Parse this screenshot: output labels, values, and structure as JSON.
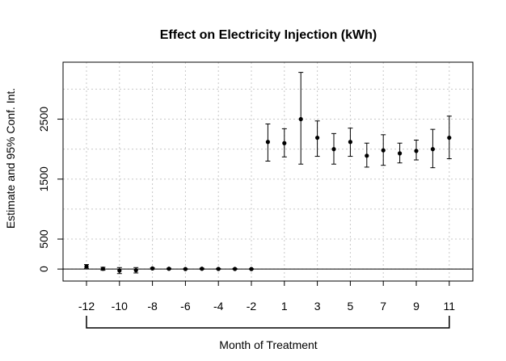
{
  "chart_data": {
    "type": "scatter",
    "title": "Effect on Electricity Injection (kWh)",
    "xlabel": "Month of Treatment",
    "ylabel": "Estimate and 95% Conf. Int.",
    "x_tick_labels": [
      "-12",
      "-10",
      "-8",
      "-6",
      "-4",
      "-2",
      "1",
      "3",
      "5",
      "7",
      "9",
      "11"
    ],
    "y_ticks": [
      0,
      500,
      1500,
      2500
    ],
    "ylim": [
      -200,
      3450
    ],
    "grid": true,
    "reference_line": 0,
    "series": [
      {
        "points": [
          {
            "x": "-12",
            "estimate": 45,
            "lower": 15,
            "upper": 75
          },
          {
            "x": "-11",
            "estimate": 5,
            "lower": -20,
            "upper": 30
          },
          {
            "x": "-10",
            "estimate": -25,
            "lower": -75,
            "upper": 25
          },
          {
            "x": "-9",
            "estimate": -20,
            "lower": -65,
            "upper": 25
          },
          {
            "x": "-8",
            "estimate": 10,
            "lower": 0,
            "upper": 20
          },
          {
            "x": "-7",
            "estimate": 5,
            "lower": -5,
            "upper": 15
          },
          {
            "x": "-6",
            "estimate": 0,
            "lower": -5,
            "upper": 5
          },
          {
            "x": "-5",
            "estimate": 5,
            "lower": -5,
            "upper": 15
          },
          {
            "x": "-4",
            "estimate": 2,
            "lower": -5,
            "upper": 10
          },
          {
            "x": "-3",
            "estimate": 2,
            "lower": -5,
            "upper": 10
          },
          {
            "x": "-2",
            "estimate": 0,
            "lower": -5,
            "upper": 5
          },
          {
            "x": "0",
            "estimate": 2120,
            "lower": 1800,
            "upper": 2420
          },
          {
            "x": "1",
            "estimate": 2100,
            "lower": 1870,
            "upper": 2340
          },
          {
            "x": "2",
            "estimate": 2500,
            "lower": 1750,
            "upper": 3280
          },
          {
            "x": "3",
            "estimate": 2190,
            "lower": 1880,
            "upper": 2470
          },
          {
            "x": "4",
            "estimate": 2000,
            "lower": 1750,
            "upper": 2260
          },
          {
            "x": "5",
            "estimate": 2120,
            "lower": 1880,
            "upper": 2350
          },
          {
            "x": "6",
            "estimate": 1890,
            "lower": 1700,
            "upper": 2100
          },
          {
            "x": "7",
            "estimate": 1980,
            "lower": 1730,
            "upper": 2240
          },
          {
            "x": "8",
            "estimate": 1930,
            "lower": 1770,
            "upper": 2100
          },
          {
            "x": "9",
            "estimate": 1970,
            "lower": 1820,
            "upper": 2150
          },
          {
            "x": "10",
            "estimate": 2000,
            "lower": 1690,
            "upper": 2330
          },
          {
            "x": "11",
            "estimate": 2190,
            "lower": 1840,
            "upper": 2550
          }
        ]
      }
    ]
  }
}
